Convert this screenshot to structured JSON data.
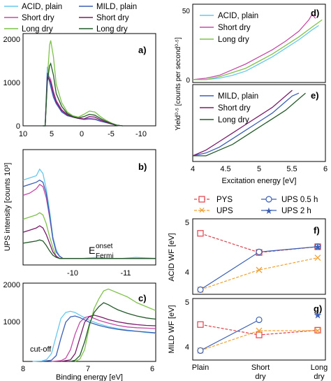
{
  "colors": {
    "acid_plain": "#66c8ee",
    "acid_short": "#c64aa8",
    "acid_long": "#7fc24a",
    "mild_plain": "#3b5fb5",
    "mild_short": "#7b1a6a",
    "mild_long": "#245a2a",
    "pys": "#e0404a",
    "ups": "#f0a030",
    "ups05": "#3b5fb5",
    "ups2": "#3b5fb5"
  },
  "legend": {
    "acid_plain": "ACID, plain",
    "acid_short": "Short dry",
    "acid_long": "Long dry",
    "mild_plain": "MILD, plain",
    "mild_short": "Short dry",
    "mild_long": "Long dry",
    "pys": "PYS",
    "ups": "UPS",
    "ups05": "UPS 0.5 h",
    "ups2": "UPS 2 h"
  },
  "labels": {
    "ups_ylabel": "UPS intensity [counts 10³]",
    "binding_xlabel": "Binding energy [eV]",
    "yield_ylabel": "Yield⁰ᐧ⁵ [counts per second⁰ᐧ⁵]",
    "exc_xlabel": "Excitation energy [eV]",
    "acid_wf": "ACID WF [eV]",
    "mild_wf": "MILD WF [eV]",
    "efermi_main": "E",
    "efermi_onset": "onset",
    "efermi_sub": "Fermi",
    "cutoff": "cut-off",
    "panel_a": "a)",
    "panel_b": "b)",
    "panel_c": "c)",
    "panel_d": "d)",
    "panel_e": "e)",
    "panel_f": "f)",
    "panel_g": "g)"
  },
  "ticks": {
    "a_x": [
      "10",
      "5",
      "0",
      "-5",
      "-10"
    ],
    "a_y": [
      "0",
      "1000",
      "2000"
    ],
    "b_x": [
      "-10",
      "-11"
    ],
    "c_x": [
      "8",
      "7",
      "6"
    ],
    "c_y": [
      "1000",
      "2000"
    ],
    "de_x": [
      "4",
      "4.5",
      "5",
      "5.5",
      "6"
    ],
    "d_y": [
      "0",
      "10",
      "20",
      "30",
      "40",
      "50"
    ],
    "e_y": [
      "0",
      "10",
      "20"
    ],
    "f_y": [
      "4",
      "5"
    ],
    "g_y": [
      "4",
      "5"
    ],
    "fg_x": [
      "Plain",
      "Short",
      "Long"
    ],
    "fg_x2": [
      "dry",
      "dry"
    ]
  },
  "chart_data": [
    {
      "panel": "a",
      "type": "line",
      "xlabel": "",
      "ylabel": "",
      "xlim": [
        12,
        -12
      ],
      "ylim": [
        0,
        2000
      ],
      "series": [
        {
          "name": "ACID, plain",
          "x": [
            8.4,
            8,
            7.6,
            7.2,
            7,
            6.5,
            6,
            5,
            4,
            3,
            2,
            1,
            0,
            -1,
            -2,
            -3,
            -4,
            -5,
            -6
          ],
          "y": [
            0,
            0,
            1280,
            1000,
            900,
            650,
            500,
            300,
            230,
            200,
            160,
            140,
            150,
            140,
            100,
            80,
            40,
            10,
            0
          ]
        },
        {
          "name": "Short dry",
          "x": [
            8.4,
            8,
            7.6,
            7.2,
            7,
            6.5,
            6,
            5,
            4,
            3,
            2,
            1,
            0,
            -1,
            -2,
            -3,
            -4,
            -5,
            -6
          ],
          "y": [
            0,
            0,
            1100,
            1050,
            1000,
            750,
            550,
            350,
            250,
            200,
            170,
            150,
            160,
            150,
            110,
            80,
            40,
            10,
            0
          ]
        },
        {
          "name": "Long dry",
          "x": [
            8.4,
            8,
            7.6,
            7.2,
            7,
            6.5,
            6,
            5,
            4,
            3,
            2,
            1,
            0,
            -1,
            -2,
            -3,
            -4,
            -5,
            -6
          ],
          "y": [
            0,
            0,
            1000,
            1750,
            1850,
            1500,
            900,
            500,
            300,
            220,
            190,
            250,
            320,
            300,
            200,
            120,
            60,
            15,
            0
          ]
        },
        {
          "name": "MILD, plain",
          "x": [
            8.4,
            8,
            7.6,
            7.2,
            7,
            6.5,
            6,
            5,
            4,
            3,
            2,
            1,
            0,
            -1,
            -2,
            -3,
            -4,
            -5,
            -6
          ],
          "y": [
            0,
            0,
            1150,
            950,
            850,
            620,
            480,
            300,
            220,
            190,
            160,
            140,
            150,
            140,
            100,
            70,
            40,
            10,
            0
          ]
        },
        {
          "name": "Short dry",
          "x": [
            8.4,
            8,
            7.6,
            7.2,
            7,
            6.5,
            6,
            5,
            4,
            3,
            2,
            1,
            0,
            -1,
            -2,
            -3,
            -4,
            -5,
            -6
          ],
          "y": [
            0,
            0,
            1050,
            1000,
            950,
            700,
            520,
            330,
            240,
            190,
            160,
            150,
            200,
            190,
            130,
            80,
            40,
            10,
            0
          ]
        },
        {
          "name": "Long dry",
          "x": [
            8.4,
            8,
            7.6,
            7.2,
            7,
            6.5,
            6,
            5,
            4,
            3,
            2,
            1,
            0,
            -1,
            -2,
            -3,
            -4,
            -5,
            -6
          ],
          "y": [
            0,
            0,
            950,
            1300,
            1350,
            1100,
            700,
            420,
            270,
            200,
            170,
            200,
            250,
            230,
            160,
            100,
            50,
            12,
            0
          ]
        }
      ]
    },
    {
      "panel": "b",
      "type": "line",
      "ylabel": "UPS intensity [counts 10³]",
      "xlim": [
        -9.5,
        -11.5
      ],
      "ylim": [
        -0.3,
        5
      ],
      "series": [
        {
          "name": "ACID, plain",
          "x": [
            -9.5,
            -9.6,
            -9.7,
            -9.75,
            -9.8,
            -9.85,
            -9.9,
            -9.95,
            -10,
            -10.05,
            -10.1,
            -10.2,
            -10.4,
            -10.6,
            -10.8,
            -11,
            -11.2,
            -11.5
          ],
          "y": [
            3.6,
            3.7,
            3.8,
            4.1,
            3.9,
            3.2,
            2.2,
            1.0,
            0.4,
            0.1,
            0,
            0,
            0,
            0.05,
            0,
            0,
            0.05,
            0
          ]
        },
        {
          "name": "Short dry",
          "x": [
            -9.5,
            -9.6,
            -9.7,
            -9.75,
            -9.8,
            -9.85,
            -9.9,
            -9.95,
            -10,
            -10.05,
            -10.1,
            -10.2,
            -10.4,
            -10.6,
            -10.8,
            -11,
            -11.2,
            -11.5
          ],
          "y": [
            2.9,
            3.0,
            3.2,
            3.4,
            3.3,
            2.8,
            1.9,
            0.9,
            0.3,
            0.1,
            0,
            0,
            0,
            0,
            0,
            0,
            0,
            0
          ]
        },
        {
          "name": "Long dry",
          "x": [
            -9.5,
            -9.6,
            -9.7,
            -9.75,
            -9.8,
            -9.85,
            -9.9,
            -9.95,
            -10,
            -10.05,
            -10.1,
            -10.2,
            -10.4,
            -10.6,
            -10.8,
            -11,
            -11.2,
            -11.5
          ],
          "y": [
            1.8,
            1.9,
            2.0,
            2.1,
            2.0,
            1.6,
            1.0,
            0.5,
            0.1,
            0,
            0,
            0,
            0,
            0,
            0,
            0,
            0,
            0
          ]
        },
        {
          "name": "MILD, plain",
          "x": [
            -9.5,
            -9.6,
            -9.7,
            -9.75,
            -9.8,
            -9.85,
            -9.9,
            -9.95,
            -10,
            -10.05,
            -10.1,
            -10.2,
            -10.4,
            -10.6,
            -10.8,
            -11,
            -11.2,
            -11.5
          ],
          "y": [
            3.3,
            3.4,
            3.5,
            3.6,
            3.5,
            3.0,
            2.0,
            0.9,
            0.3,
            0.1,
            0,
            0,
            0,
            0,
            0,
            0,
            0,
            0
          ]
        },
        {
          "name": "Short dry",
          "x": [
            -9.5,
            -9.6,
            -9.7,
            -9.75,
            -9.8,
            -9.85,
            -9.9,
            -9.95,
            -10,
            -10.05,
            -10.1,
            -10.2,
            -10.4,
            -10.6,
            -10.8,
            -11,
            -11.2,
            -11.5
          ],
          "y": [
            1.2,
            1.3,
            1.4,
            1.5,
            1.4,
            1.1,
            0.7,
            0.3,
            0.1,
            0,
            0,
            0,
            0,
            0,
            0,
            0,
            0,
            0
          ]
        },
        {
          "name": "Long dry",
          "x": [
            -9.5,
            -9.6,
            -9.7,
            -9.75,
            -9.8,
            -9.85,
            -9.9,
            -9.95,
            -10,
            -10.05,
            -10.1,
            -10.2,
            -10.4,
            -10.6,
            -10.8,
            -11,
            -11.2,
            -11.5
          ],
          "y": [
            0.7,
            0.75,
            0.8,
            0.85,
            0.8,
            0.6,
            0.35,
            0.15,
            0.05,
            0,
            0,
            0,
            0,
            0,
            0,
            0,
            0,
            0
          ]
        }
      ]
    },
    {
      "panel": "c",
      "type": "line",
      "xlabel": "Binding energy [eV]",
      "xlim": [
        8,
        5.2
      ],
      "ylim": [
        0,
        2000
      ],
      "series": [
        {
          "name": "ACID, plain",
          "x": [
            7.8,
            7.6,
            7.5,
            7.4,
            7.3,
            7.2,
            7.1,
            7,
            6.9,
            6.8,
            6.6,
            6.4,
            6.2,
            6,
            5.8,
            5.6,
            5.4,
            5.2
          ],
          "y": [
            0,
            10,
            50,
            200,
            650,
            1100,
            1250,
            1280,
            1250,
            1180,
            1050,
            960,
            890,
            840,
            800,
            770,
            740,
            720
          ]
        },
        {
          "name": "Short dry",
          "x": [
            7.4,
            7.2,
            7.1,
            7,
            6.9,
            6.8,
            6.7,
            6.6,
            6.5,
            6.4,
            6.2,
            6,
            5.8,
            5.6,
            5.4,
            5.2
          ],
          "y": [
            0,
            20,
            80,
            300,
            700,
            1000,
            1120,
            1150,
            1100,
            1050,
            980,
            920,
            880,
            860,
            850,
            840
          ]
        },
        {
          "name": "Long dry",
          "x": [
            6.9,
            6.8,
            6.7,
            6.6,
            6.5,
            6.4,
            6.3,
            6.2,
            6.1,
            6,
            5.9,
            5.8,
            5.6,
            5.4,
            5.2
          ],
          "y": [
            0,
            60,
            300,
            900,
            1350,
            1600,
            1800,
            1850,
            1800,
            1750,
            1700,
            1650,
            1500,
            1400,
            1300
          ]
        },
        {
          "name": "MILD, plain",
          "x": [
            7.6,
            7.4,
            7.3,
            7.2,
            7.1,
            7,
            6.9,
            6.8,
            6.7,
            6.6,
            6.4,
            6.2,
            6,
            5.8,
            5.6,
            5.4,
            5.2
          ],
          "y": [
            0,
            30,
            150,
            600,
            1000,
            1140,
            1160,
            1120,
            1060,
            1000,
            920,
            860,
            820,
            790,
            770,
            750,
            730
          ]
        },
        {
          "name": "Short dry",
          "x": [
            7.2,
            7,
            6.9,
            6.8,
            6.7,
            6.6,
            6.5,
            6.4,
            6.3,
            6.2,
            6,
            5.8,
            5.6,
            5.4,
            5.2
          ],
          "y": [
            0,
            40,
            200,
            600,
            1000,
            1150,
            1180,
            1150,
            1110,
            1070,
            1010,
            970,
            940,
            920,
            910
          ]
        },
        {
          "name": "Long dry",
          "x": [
            7,
            6.9,
            6.8,
            6.7,
            6.6,
            6.5,
            6.4,
            6.3,
            6.2,
            6.1,
            6,
            5.8,
            5.6,
            5.4,
            5.2
          ],
          "y": [
            0,
            30,
            150,
            500,
            950,
            1250,
            1400,
            1500,
            1450,
            1380,
            1320,
            1230,
            1160,
            1110,
            1080
          ]
        }
      ]
    },
    {
      "panel": "d",
      "type": "line",
      "ylabel": "Yield^0.5 [counts per second^0.5]",
      "xlim": [
        4,
        6
      ],
      "ylim": [
        0,
        55
      ],
      "series": [
        {
          "name": "ACID, plain",
          "x": [
            4,
            4.2,
            4.4,
            4.6,
            4.8,
            5,
            5.2,
            5.4,
            5.6,
            5.8,
            5.9
          ],
          "y": [
            2,
            2,
            3,
            5,
            8,
            13,
            18,
            24,
            30,
            37,
            40
          ]
        },
        {
          "name": "Short dry",
          "x": [
            4,
            4.2,
            4.4,
            4.6,
            4.8,
            5,
            5.2,
            5.4,
            5.6,
            5.75,
            5.8,
            5.85
          ],
          "y": [
            2,
            3,
            5,
            9,
            13,
            18,
            23,
            29,
            36,
            44,
            48,
            45
          ]
        },
        {
          "name": "Long dry",
          "x": [
            4,
            4.2,
            4.4,
            4.6,
            4.8,
            5,
            5.2,
            5.4,
            5.6,
            5.8,
            5.95
          ],
          "y": [
            2,
            2,
            4,
            7,
            10,
            15,
            20,
            26,
            32,
            39,
            44
          ]
        }
      ]
    },
    {
      "panel": "e",
      "type": "line",
      "xlabel": "Excitation energy [eV]",
      "xlim": [
        4,
        6
      ],
      "ylim": [
        0,
        27
      ],
      "series": [
        {
          "name": "MILD, plain",
          "x": [
            4,
            4.2,
            4.4,
            4.6,
            4.8,
            5,
            5.2,
            5.4,
            5.5,
            5.6
          ],
          "y": [
            2,
            3,
            5,
            8,
            11,
            14,
            17,
            21,
            23,
            24
          ]
        },
        {
          "name": "Short dry",
          "x": [
            4,
            4.2,
            4.4,
            4.6,
            4.8,
            5,
            5.2,
            5.4,
            5.5
          ],
          "y": [
            2,
            4,
            7,
            10,
            13,
            16,
            19,
            23,
            25
          ]
        },
        {
          "name": "Long dry",
          "x": [
            4,
            4.2,
            4.4,
            4.6,
            4.8,
            5,
            5.2,
            5.4,
            5.6,
            5.7
          ],
          "y": [
            2,
            2,
            4,
            6,
            9,
            12,
            15,
            18,
            22,
            24
          ]
        }
      ]
    },
    {
      "panel": "f",
      "type": "line",
      "ylabel": "ACID WF [eV]",
      "categories": [
        "Plain",
        "Short dry",
        "Long dry"
      ],
      "ylim": [
        3.7,
        5
      ],
      "series": [
        {
          "name": "PYS",
          "values": [
            4.75,
            4.42,
            4.52
          ]
        },
        {
          "name": "UPS",
          "values": [
            3.78,
            4.12,
            4.33
          ]
        },
        {
          "name": "UPS 0.5 h",
          "values": [
            3.78,
            4.43,
            4.52
          ]
        },
        {
          "name": "UPS 2 h",
          "values": [
            null,
            null,
            4.52
          ]
        }
      ]
    },
    {
      "panel": "g",
      "type": "line",
      "ylabel": "MILD WF [eV]",
      "categories": [
        "Plain",
        "Short dry",
        "Long dry"
      ],
      "ylim": [
        3.7,
        5
      ],
      "series": [
        {
          "name": "PYS",
          "values": [
            4.45,
            4.23,
            4.33
          ]
        },
        {
          "name": "UPS",
          "values": [
            3.9,
            4.32,
            4.32
          ]
        },
        {
          "name": "UPS 0.5 h",
          "values": [
            3.9,
            4.55,
            null
          ]
        },
        {
          "name": "UPS 2 h",
          "values": [
            null,
            null,
            4.65
          ]
        }
      ]
    }
  ]
}
